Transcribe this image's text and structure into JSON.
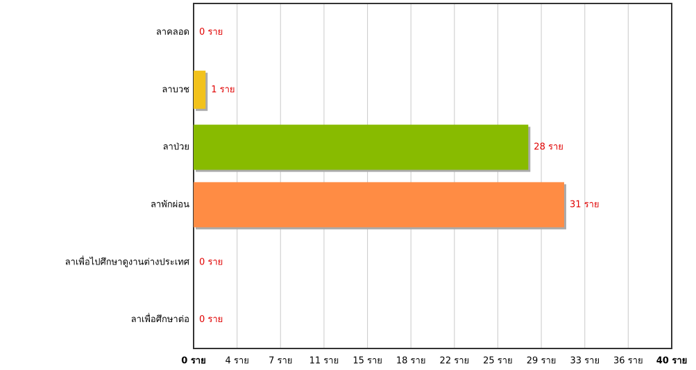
{
  "chart_data": {
    "type": "hbar",
    "categories": [
      "ลาคลอด",
      "ลาบวช",
      "ลาป่วย",
      "ลาพักผ่อน",
      "ลาเพื่อไปศึกษาดูงานต่างประเทศ",
      "ลาเพื่อศึกษาต่อ"
    ],
    "values": [
      0,
      1,
      28,
      31,
      0,
      0
    ],
    "value_labels": [
      "0 ราย",
      "1 ราย",
      "28 ราย",
      "31 ราย",
      "0 ราย",
      "0 ราย"
    ],
    "colors": [
      "#f2c21c",
      "#f2c21c",
      "#88bb00",
      "#ff8c44",
      "#f2c21c",
      "#f2c21c"
    ],
    "xlim": [
      0,
      40
    ],
    "xticks": [
      {
        "value": 0,
        "label": "0 ราย"
      },
      {
        "value": 3.64,
        "label": "4 ราย"
      },
      {
        "value": 7.27,
        "label": "7 ราย"
      },
      {
        "value": 10.91,
        "label": "11 ราย"
      },
      {
        "value": 14.55,
        "label": "15 ราย"
      },
      {
        "value": 18.18,
        "label": "18 ราย"
      },
      {
        "value": 21.82,
        "label": "22 ราย"
      },
      {
        "value": 25.45,
        "label": "25 ราย"
      },
      {
        "value": 29.09,
        "label": "29 ราย"
      },
      {
        "value": 32.73,
        "label": "33 ราย"
      },
      {
        "value": 36.36,
        "label": "36 ราย"
      },
      {
        "value": 40,
        "label": "40 ราย"
      }
    ],
    "grid": true
  }
}
